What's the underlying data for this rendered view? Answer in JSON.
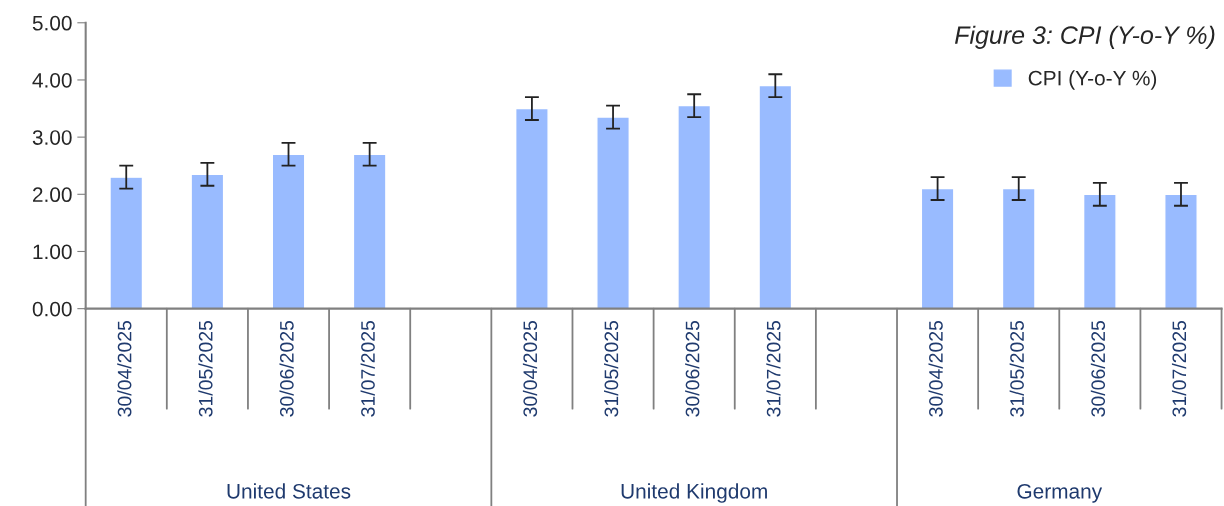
{
  "chart_data": {
    "type": "bar",
    "title": "Figure 3: CPI (Y-o-Y %)",
    "categories": [
      "30/04/2025",
      "31/05/2025",
      "30/06/2025",
      "31/07/2025",
      null,
      "30/04/2025",
      "31/05/2025",
      "30/06/2025",
      "31/07/2025",
      null,
      "30/04/2025",
      "31/05/2025",
      "30/06/2025",
      "31/07/2025"
    ],
    "series": [
      {
        "name": "CPI (Y-o-Y %)",
        "color": "#99bbff",
        "values": [
          2.3,
          2.35,
          2.7,
          2.7,
          null,
          3.5,
          3.35,
          3.55,
          3.9,
          null,
          2.1,
          2.1,
          2.0,
          2.0
        ],
        "errors": [
          0.2,
          0.2,
          0.2,
          0.2,
          null,
          0.2,
          0.2,
          0.2,
          0.2,
          null,
          0.2,
          0.2,
          0.2,
          0.2
        ]
      }
    ],
    "annotations": [
      "United States",
      "United Kingdom",
      "Germany"
    ],
    "ylim": [
      0,
      5
    ],
    "yticks": [
      {
        "value": 0,
        "label": "0.00"
      },
      {
        "value": 1,
        "label": "1.00"
      },
      {
        "value": 2,
        "label": "2.00"
      },
      {
        "value": 3,
        "label": "3.00"
      },
      {
        "value": 4,
        "label": "4.00"
      },
      {
        "value": 5,
        "label": "5.00"
      }
    ],
    "legend": "top right",
    "grid": false
  }
}
